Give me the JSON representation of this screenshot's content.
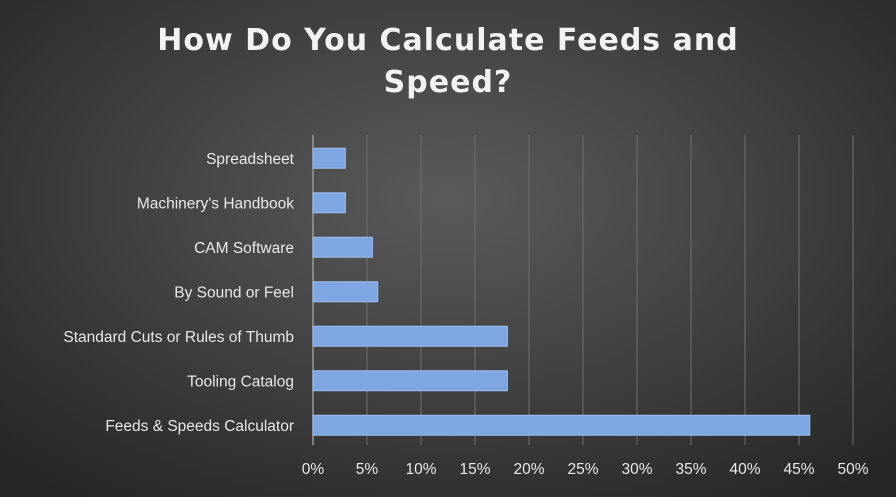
{
  "chart_data": {
    "type": "bar",
    "orientation": "horizontal",
    "title": "How Do You Calculate Feeds and\nSpeed?",
    "categories": [
      "Spreadsheet",
      "Machinery's Handbook",
      "CAM Software",
      "By Sound or Feel",
      "Standard Cuts or Rules of Thumb",
      "Tooling Catalog",
      "Feeds & Speeds Calculator"
    ],
    "values": [
      3,
      3,
      5.5,
      6,
      18,
      18,
      46
    ],
    "xlim": [
      0,
      50
    ],
    "xticks": [
      "0%",
      "5%",
      "10%",
      "15%",
      "20%",
      "25%",
      "30%",
      "35%",
      "40%",
      "45%",
      "50%"
    ],
    "grid": true,
    "legend": "none",
    "xlabel": "",
    "ylabel": "",
    "colors": {
      "bar_fill": "#7ea6e0",
      "bar_stroke": "#9dbdf0",
      "grid": "#6e6e6e",
      "axis": "#9a9a9a",
      "text": "#e8e8e8"
    }
  }
}
